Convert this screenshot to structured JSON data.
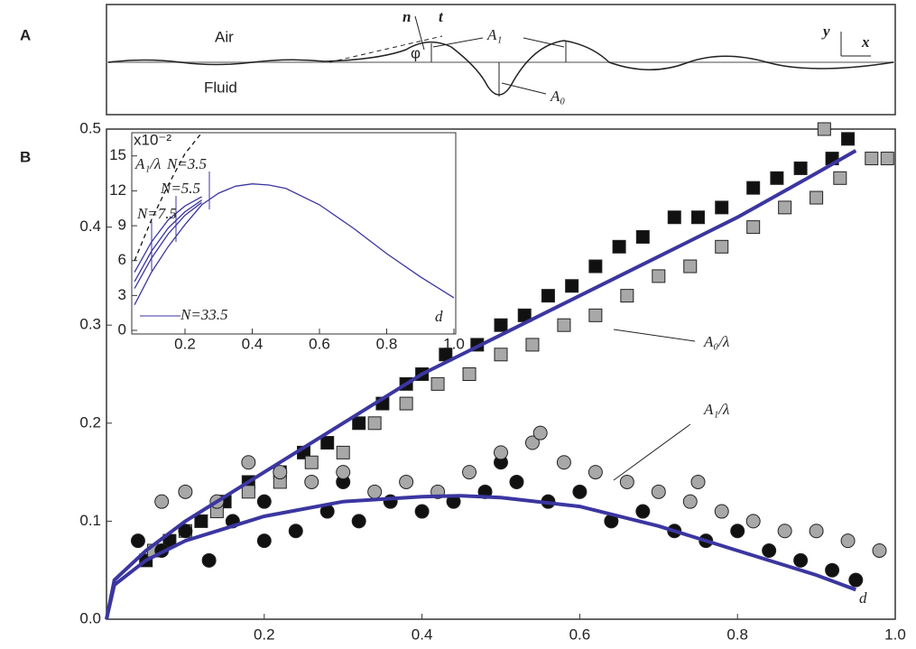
{
  "panel_a": {
    "label": "A",
    "air": "Air",
    "fluid": "Fluid",
    "n": "n",
    "t": "t",
    "phi": "φ",
    "a1": "A₁",
    "a0": "A₀",
    "y": "y",
    "x": "x"
  },
  "panel_b_label": "B",
  "chart_data": [
    {
      "type": "scatter",
      "xlim": [
        0,
        1
      ],
      "ylim": [
        0,
        0.5
      ],
      "xticks": [
        0.2,
        0.4,
        0.6,
        0.8,
        {
          "value": 1,
          "label": "1.0"
        }
      ],
      "yticks": [
        {
          "value": 0,
          "label": "0.0"
        },
        0.1,
        0.2,
        0.3,
        0.4,
        0.5
      ],
      "annotations": [
        "A₀/λ",
        "A₁/λ",
        "d"
      ],
      "series": [
        {
          "marker": "square",
          "color": "#111111",
          "x": [
            0.05,
            0.08,
            0.12,
            0.15,
            0.18,
            0.22,
            0.25,
            0.28,
            0.32,
            0.35,
            0.38,
            0.4,
            0.43,
            0.47,
            0.5,
            0.53,
            0.56,
            0.59,
            0.62,
            0.65,
            0.68,
            0.72,
            0.75,
            0.78,
            0.82,
            0.85,
            0.88,
            0.92,
            0.94
          ],
          "values": [
            0.06,
            0.08,
            0.1,
            0.12,
            0.14,
            0.15,
            0.17,
            0.18,
            0.2,
            0.22,
            0.24,
            0.25,
            0.27,
            0.28,
            0.3,
            0.31,
            0.33,
            0.34,
            0.36,
            0.38,
            0.39,
            0.41,
            0.41,
            0.42,
            0.44,
            0.45,
            0.46,
            0.47,
            0.49
          ]
        },
        {
          "marker": "square",
          "color": "#a8a8a8",
          "x": [
            0.06,
            0.1,
            0.14,
            0.18,
            0.22,
            0.26,
            0.3,
            0.34,
            0.38,
            0.42,
            0.46,
            0.5,
            0.54,
            0.58,
            0.62,
            0.66,
            0.7,
            0.74,
            0.78,
            0.82,
            0.86,
            0.9,
            0.93,
            0.97,
            0.99,
            0.91
          ],
          "values": [
            0.07,
            0.09,
            0.11,
            0.13,
            0.14,
            0.16,
            0.17,
            0.2,
            0.22,
            0.24,
            0.25,
            0.27,
            0.28,
            0.3,
            0.31,
            0.33,
            0.35,
            0.36,
            0.38,
            0.4,
            0.42,
            0.43,
            0.45,
            0.47,
            0.47,
            0.5
          ]
        },
        {
          "marker": "circle",
          "color": "#111111",
          "x": [
            0.04,
            0.07,
            0.1,
            0.13,
            0.16,
            0.2,
            0.24,
            0.28,
            0.32,
            0.36,
            0.4,
            0.44,
            0.48,
            0.52,
            0.56,
            0.6,
            0.64,
            0.68,
            0.72,
            0.76,
            0.8,
            0.84,
            0.88,
            0.92,
            0.95,
            0.5,
            0.3,
            0.2
          ],
          "values": [
            0.08,
            0.07,
            0.09,
            0.06,
            0.1,
            0.08,
            0.09,
            0.11,
            0.1,
            0.12,
            0.11,
            0.12,
            0.13,
            0.14,
            0.12,
            0.13,
            0.1,
            0.11,
            0.09,
            0.08,
            0.09,
            0.07,
            0.06,
            0.05,
            0.04,
            0.16,
            0.14,
            0.12
          ]
        },
        {
          "marker": "circle",
          "color": "#a8a8a8",
          "x": [
            0.07,
            0.1,
            0.14,
            0.18,
            0.22,
            0.26,
            0.3,
            0.34,
            0.38,
            0.42,
            0.46,
            0.5,
            0.54,
            0.58,
            0.62,
            0.66,
            0.7,
            0.74,
            0.78,
            0.82,
            0.86,
            0.9,
            0.94,
            0.98,
            0.55,
            0.75
          ],
          "values": [
            0.12,
            0.13,
            0.12,
            0.16,
            0.15,
            0.14,
            0.15,
            0.13,
            0.14,
            0.13,
            0.15,
            0.17,
            0.18,
            0.16,
            0.15,
            0.14,
            0.13,
            0.12,
            0.11,
            0.1,
            0.09,
            0.09,
            0.08,
            0.07,
            0.19,
            0.14
          ]
        }
      ],
      "lines": [
        {
          "color": "#3b36a0",
          "x": [
            0,
            0.01,
            0.05,
            0.1,
            0.2,
            0.3,
            0.4,
            0.5,
            0.6,
            0.7,
            0.8,
            0.9,
            0.95
          ],
          "values": [
            0,
            0.04,
            0.07,
            0.1,
            0.15,
            0.2,
            0.25,
            0.29,
            0.33,
            0.37,
            0.41,
            0.455,
            0.478
          ]
        },
        {
          "color": "#3b36a0",
          "x": [
            0,
            0.01,
            0.05,
            0.1,
            0.2,
            0.3,
            0.4,
            0.45,
            0.5,
            0.6,
            0.7,
            0.8,
            0.9,
            0.95
          ],
          "values": [
            0,
            0.035,
            0.06,
            0.08,
            0.105,
            0.12,
            0.125,
            0.126,
            0.124,
            0.115,
            0.095,
            0.07,
            0.045,
            0.03
          ]
        }
      ]
    },
    {
      "type": "line",
      "xlim": [
        0.05,
        1
      ],
      "ylim": [
        0,
        17
      ],
      "xticks": [
        0.2,
        0.4,
        0.6,
        0.8,
        {
          "value": 1,
          "label": "1.0"
        }
      ],
      "yticks": [
        0,
        3,
        6,
        9,
        12,
        15
      ],
      "scale_label": "x10⁻²",
      "annotations": [
        "A₁/λ",
        "N=3.5",
        "N=5.5",
        "N=7.5",
        "N=33.5",
        "d"
      ],
      "x": [
        0.05,
        0.1,
        0.15,
        0.2,
        0.25,
        0.3,
        0.35,
        0.4,
        0.45,
        0.5,
        0.6,
        0.7,
        0.8,
        0.9,
        1.0
      ],
      "series": [
        {
          "color": "#111111",
          "dashed": true,
          "values": [
            6,
            9.5,
            12.5,
            15.2,
            17,
            null,
            null,
            null,
            null,
            null,
            null,
            null,
            null,
            null,
            null
          ]
        },
        {
          "color": "#3b36a0",
          "values": [
            5,
            7.6,
            9.5,
            10.7,
            11.5,
            null,
            null,
            null,
            null,
            null,
            null,
            null,
            null,
            null,
            null
          ]
        },
        {
          "color": "#3b36a0",
          "values": [
            4.2,
            6.8,
            8.8,
            10.2,
            11.2,
            null,
            null,
            null,
            null,
            null,
            null,
            null,
            null,
            null,
            null
          ]
        },
        {
          "color": "#3b36a0",
          "values": [
            3.6,
            6.2,
            8.3,
            9.9,
            11,
            null,
            null,
            null,
            null,
            null,
            null,
            null,
            null,
            null,
            null
          ]
        },
        {
          "color": "#3b36a0",
          "values": [
            2.2,
            5,
            7.2,
            9.1,
            10.8,
            11.8,
            12.4,
            12.6,
            12.5,
            12.2,
            10.8,
            8.8,
            6.6,
            4.6,
            2.8
          ]
        }
      ]
    }
  ]
}
